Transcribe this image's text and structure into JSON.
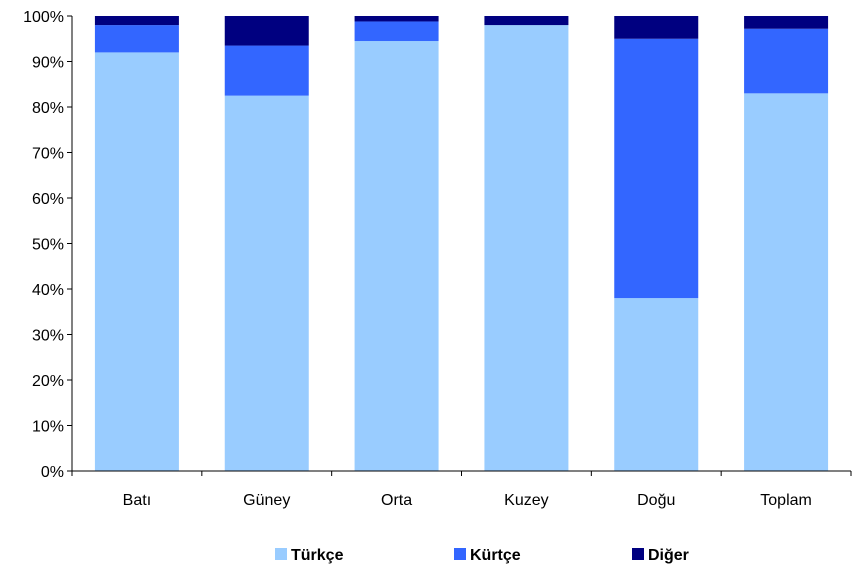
{
  "chart_data": {
    "type": "bar",
    "stacked": true,
    "percent": true,
    "categories": [
      "Batı",
      "Güney",
      "Orta",
      "Kuzey",
      "Doğu",
      "Toplam"
    ],
    "series": [
      {
        "name": "Türkçe",
        "color": "#99CCFF",
        "values": [
          92,
          82.5,
          94.5,
          98,
          38,
          83
        ]
      },
      {
        "name": "Kürtçe",
        "color": "#3366FF",
        "values": [
          6,
          11,
          4.3,
          0,
          57,
          14.2
        ]
      },
      {
        "name": "Diğer",
        "color": "#000080",
        "values": [
          2,
          6.5,
          1.2,
          2,
          5,
          2.8
        ]
      }
    ],
    "ylim": [
      0,
      100
    ],
    "yticks": [
      "0%",
      "10%",
      "20%",
      "30%",
      "40%",
      "50%",
      "60%",
      "70%",
      "80%",
      "90%",
      "100%"
    ],
    "grid": false,
    "legend_position": "bottom"
  }
}
